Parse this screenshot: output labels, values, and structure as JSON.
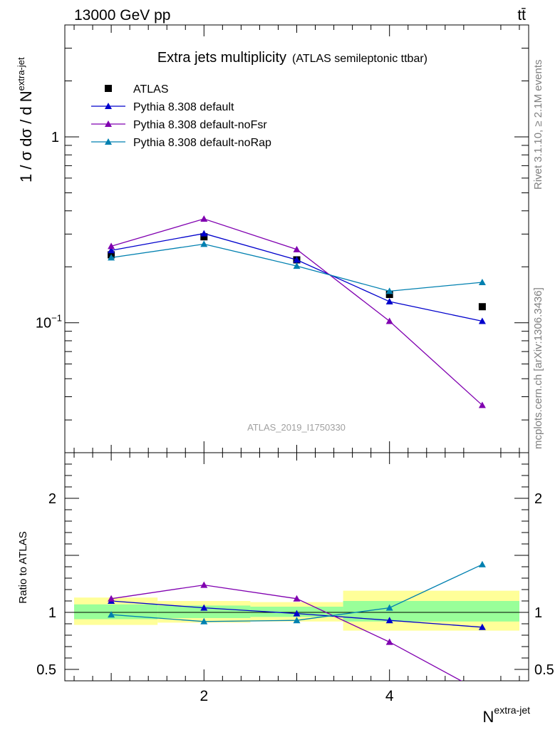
{
  "header": {
    "energy": "13000 GeV pp",
    "process": "tt̄"
  },
  "side_labels": {
    "rivet": "Rivet 3.1.10, ≥ 2.1M events",
    "source": "mcplots.cern.ch [arXiv:1306.3436]"
  },
  "chart_data": [
    {
      "type": "line",
      "title": "Extra jets multiplicity",
      "subtitle": "(ATLAS semileptonic ttbar)",
      "ylabel": "1 / σ dσ / d N",
      "ylabel_sup": "extra-jet",
      "xlabel": "N",
      "xlabel_sup": "extra-jet",
      "analysis": "ATLAS_2019_I1750330",
      "yscale": "log",
      "xlim": [
        0.5,
        5.5
      ],
      "ylim": [
        0.02,
        4.0
      ],
      "y_ticks": [
        {
          "value": 1,
          "label": "1"
        },
        {
          "value": 0.1,
          "label": "10",
          "sup": "−1"
        }
      ],
      "x_ticks": [
        {
          "value": 2,
          "label": "2"
        },
        {
          "value": 4,
          "label": "4"
        }
      ],
      "legend_position": "top-left",
      "x": [
        1,
        2,
        3,
        4,
        5
      ],
      "series": [
        {
          "name": "ATLAS",
          "color": "#000000",
          "marker": "square",
          "values": [
            0.232,
            0.29,
            0.218,
            0.142,
            0.122
          ]
        },
        {
          "name": "Pythia 8.308 default",
          "color": "#0000cc",
          "marker": "triangle",
          "values": [
            0.245,
            0.302,
            0.218,
            0.13,
            0.102
          ]
        },
        {
          "name": "Pythia 8.308 default-noFsr",
          "color": "#8000b0",
          "marker": "triangle",
          "values": [
            0.258,
            0.362,
            0.248,
            0.102,
            0.036
          ]
        },
        {
          "name": "Pythia 8.308 default-noRap",
          "color": "#0080b0",
          "marker": "triangle",
          "values": [
            0.224,
            0.265,
            0.202,
            0.148,
            0.165
          ]
        }
      ]
    },
    {
      "type": "line",
      "ylabel": "Ratio to ATLAS",
      "xlabel": "N",
      "xlabel_sup": "extra-jet",
      "xlim": [
        0.5,
        5.5
      ],
      "ylim": [
        0.4,
        2.4
      ],
      "y_ticks": [
        {
          "value": 0.5,
          "label": "0.5"
        },
        {
          "value": 1,
          "label": "1"
        },
        {
          "value": 2,
          "label": "2"
        }
      ],
      "x_ticks": [
        {
          "value": 2,
          "label": "2"
        },
        {
          "value": 4,
          "label": "4"
        }
      ],
      "bands": [
        {
          "x": [
            0.6,
            1.5
          ],
          "inner": [
            0.94,
            1.07
          ],
          "outer": [
            0.89,
            1.13
          ]
        },
        {
          "x": [
            1.5,
            2.5
          ],
          "inner": [
            0.95,
            1.06
          ],
          "outer": [
            0.91,
            1.1
          ]
        },
        {
          "x": [
            2.5,
            3.5
          ],
          "inner": [
            0.96,
            1.05
          ],
          "outer": [
            0.92,
            1.09
          ]
        },
        {
          "x": [
            3.5,
            5.4
          ],
          "inner": [
            0.92,
            1.1
          ],
          "outer": [
            0.84,
            1.19
          ]
        }
      ],
      "x": [
        1,
        2,
        3,
        4,
        5
      ],
      "series": [
        {
          "name": "Pythia 8.308 default",
          "color": "#0000cc",
          "values": [
            1.1,
            1.04,
            0.99,
            0.93,
            0.87
          ]
        },
        {
          "name": "Pythia 8.308 default-noFsr",
          "color": "#8000b0",
          "values": [
            1.12,
            1.24,
            1.12,
            0.74,
            0.3
          ]
        },
        {
          "name": "Pythia 8.308 default-noRap",
          "color": "#0080b0",
          "values": [
            0.98,
            0.92,
            0.93,
            1.04,
            1.42
          ]
        }
      ]
    }
  ]
}
